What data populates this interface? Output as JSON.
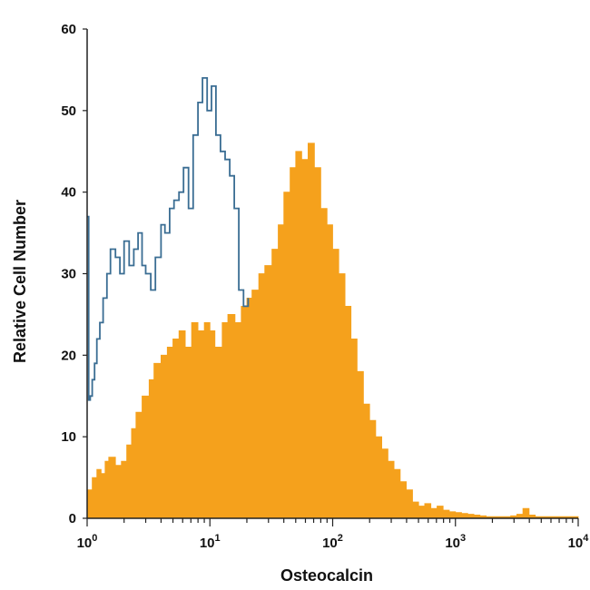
{
  "chart_data": {
    "type": "area",
    "xlabel": "Osteocalcin",
    "ylabel": "Relative Cell Number",
    "xscale": "log",
    "xlim": [
      1,
      10000
    ],
    "ylim": [
      0,
      60
    ],
    "grid": false,
    "legend": "none",
    "x_ticks": [
      {
        "base": "10",
        "exp": "0",
        "value": 1
      },
      {
        "base": "10",
        "exp": "1",
        "value": 10
      },
      {
        "base": "10",
        "exp": "2",
        "value": 100
      },
      {
        "base": "10",
        "exp": "3",
        "value": 1000
      },
      {
        "base": "10",
        "exp": "4",
        "value": 10000
      }
    ],
    "y_ticks": [
      {
        "label": "0",
        "value": 0
      },
      {
        "label": "10",
        "value": 10
      },
      {
        "label": "20",
        "value": 20
      },
      {
        "label": "30",
        "value": 30
      },
      {
        "label": "40",
        "value": 40
      },
      {
        "label": "50",
        "value": 50
      },
      {
        "label": "60",
        "value": 60
      }
    ],
    "series": [
      {
        "color": "#f5a11c",
        "style": "filled",
        "x": [
          1.0,
          1.1,
          1.2,
          1.3,
          1.4,
          1.5,
          1.7,
          1.9,
          2.1,
          2.3,
          2.5,
          2.8,
          3.2,
          3.5,
          4.0,
          4.5,
          5.0,
          5.6,
          6.3,
          7.1,
          8.0,
          9.0,
          10,
          11,
          12.6,
          14,
          16,
          18,
          20,
          22,
          25,
          28,
          32,
          36,
          40,
          45,
          50,
          56,
          63,
          71,
          80,
          90,
          100,
          112,
          126,
          141,
          158,
          178,
          200,
          224,
          251,
          282,
          316,
          355,
          398,
          447,
          501,
          562,
          631,
          708,
          794,
          891,
          1000,
          1122,
          1259,
          1413,
          1585,
          1778,
          1995,
          2239,
          2512,
          2818,
          3162,
          3548,
          3981,
          4467,
          5012,
          10000
        ],
        "y": [
          3.5,
          5,
          6,
          5.5,
          7,
          7.5,
          6.5,
          7,
          9,
          11,
          13,
          15,
          17,
          19,
          20,
          21,
          22,
          23,
          21,
          24,
          23,
          24,
          23,
          21,
          24,
          25,
          24,
          26,
          27,
          28,
          30,
          31,
          33,
          36,
          40,
          43,
          45,
          44,
          46,
          43,
          38,
          36,
          33,
          30,
          26,
          22,
          18,
          14,
          12,
          10,
          8.5,
          7,
          6,
          4.5,
          3.5,
          2,
          1.5,
          1.8,
          1.2,
          1.5,
          1.0,
          0.8,
          0.7,
          0.6,
          0.5,
          0.4,
          0.3,
          0.2,
          0.2,
          0.2,
          0.2,
          0.3,
          0.5,
          1.2,
          0.4,
          0.2,
          0.2,
          0.1
        ]
      },
      {
        "color": "#3a6d93",
        "style": "outline",
        "x": [
          1.0,
          1.03,
          1.06,
          1.1,
          1.15,
          1.2,
          1.27,
          1.35,
          1.45,
          1.55,
          1.7,
          1.85,
          2.0,
          2.2,
          2.4,
          2.6,
          2.8,
          3.0,
          3.3,
          3.6,
          4.0,
          4.3,
          4.7,
          5.1,
          5.6,
          6.1,
          6.7,
          7.3,
          8.0,
          8.7,
          9.5,
          10.3,
          11.2,
          12.2,
          13.3,
          14.5,
          15.8,
          17.2,
          18.8,
          20.5
        ],
        "y": [
          37,
          14.5,
          15,
          17,
          19,
          22,
          24,
          27,
          30,
          33,
          32,
          30,
          34,
          31,
          33,
          35,
          31,
          30,
          28,
          32,
          36,
          35,
          38,
          39,
          40,
          43,
          38,
          47,
          51,
          54,
          50,
          53,
          47,
          45,
          44,
          42,
          38,
          28,
          26,
          27
        ]
      }
    ]
  }
}
